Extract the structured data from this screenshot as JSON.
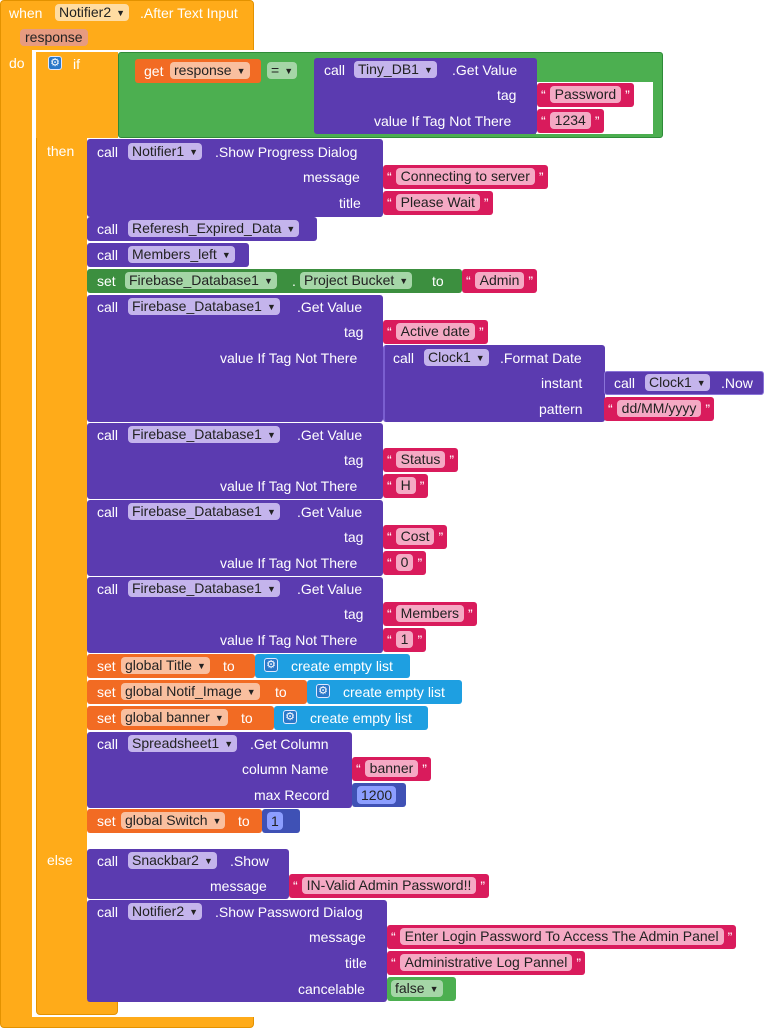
{
  "event": {
    "when": "when",
    "component": "Notifier2",
    "event_name": ".After Text Input",
    "param": "response",
    "do": "do"
  },
  "ifblock": {
    "if": "if",
    "then": "then",
    "else": "else",
    "get": "get",
    "var": "response",
    "op": "=",
    "call": "call",
    "db": "Tiny_DB1",
    "method": ".Get Value",
    "tag_label": "tag",
    "tag": "Password",
    "vitnt_label": "value If Tag Not There",
    "vitnt": "1234"
  },
  "kw": {
    "call": "call",
    "set": "set",
    "to": "to",
    "tag": "tag",
    "vitnt": "value If Tag Not There",
    "message": "message",
    "title": "title",
    "instant": "instant",
    "pattern": "pattern",
    "column_name": "column Name",
    "max_record": "max Record",
    "cancelable": "cancelable",
    "create_empty_list": "create empty list"
  },
  "then": {
    "progress": {
      "component": "Notifier1",
      "method": ".Show Progress Dialog",
      "message": "Connecting to server",
      "title": "Please Wait"
    },
    "proc1": "Referesh_Expired_Data",
    "proc2": "Members_left",
    "setfb": {
      "component": "Firebase_Database1",
      "property": "Project Bucket",
      "dot": ".",
      "value": "Admin"
    },
    "fb1": {
      "component": "Firebase_Database1",
      "method": ".Get Value",
      "tag": "Active date",
      "clock": "Clock1",
      "format_method": ".Format Date",
      "now_method": ".Now",
      "pattern": "dd/MM/yyyy"
    },
    "fb2": {
      "component": "Firebase_Database1",
      "method": ".Get Value",
      "tag": "Status",
      "vitnt": "H"
    },
    "fb3": {
      "component": "Firebase_Database1",
      "method": ".Get Value",
      "tag": "Cost",
      "vitnt": "0"
    },
    "fb4": {
      "component": "Firebase_Database1",
      "method": ".Get Value",
      "tag": "Members",
      "vitnt": "1"
    },
    "g1": "global Title",
    "g2": "global Notif_Image",
    "g3": "global banner",
    "sheet": {
      "component": "Spreadsheet1",
      "method": ".Get Column",
      "column": "banner",
      "max": "1200"
    },
    "sw": {
      "var": "global Switch",
      "value": "1"
    }
  },
  "else": {
    "snack": {
      "component": "Snackbar2",
      "method": ".Show",
      "message": "IN-Valid Admin Password!!"
    },
    "pwd": {
      "component": "Notifier2",
      "method": ".Show Password Dialog",
      "message": "Enter Login Password To Access The Admin Panel",
      "title": "Administrative Log Pannel",
      "cancelable": "false"
    }
  },
  "colors": {
    "event": "#ffab19",
    "control": "#ffab19",
    "procedure": "#5b3bb0",
    "variable": "#f26b23",
    "logic": "#4caf50",
    "text": "#d91b5c",
    "math": "#3f51b5",
    "list": "#1e9fe1"
  }
}
